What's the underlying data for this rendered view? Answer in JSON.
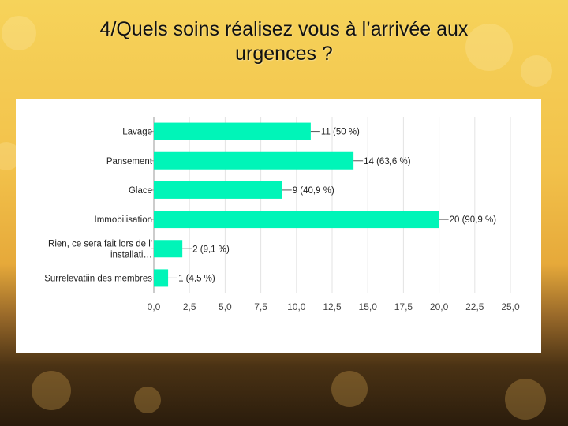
{
  "slide": {
    "title_line1": "4/Quels soins réalisez vous à l’arrivée aux",
    "title_line2": "urgences ?"
  },
  "colors": {
    "bar": "#00f5b8",
    "grid": "#e3e3e3",
    "arrow": "#4aa3d8"
  },
  "chart_data": {
    "type": "bar",
    "orientation": "horizontal",
    "categories": [
      [
        "Lavage"
      ],
      [
        "Pansement"
      ],
      [
        "Glace"
      ],
      [
        "Immobilisation"
      ],
      [
        "Rien, ce sera fait lors de l'",
        "installati…"
      ],
      [
        "Surrelevatiin des membres"
      ]
    ],
    "values": [
      11,
      14,
      9,
      20,
      2,
      1
    ],
    "data_labels": [
      "11 (50 %)",
      "14 (63,6 %)",
      "9 (40,9 %)",
      "20 (90,9 %)",
      "2 (9,1 %)",
      "1 (4,5 %)"
    ],
    "xlim": [
      0,
      25
    ],
    "x_ticks": [
      "0,0",
      "2,5",
      "5,0",
      "7,5",
      "10,0",
      "12,5",
      "15,0",
      "17,5",
      "20,0",
      "22,5",
      "25,0"
    ],
    "grid": true,
    "highlighted_categories": [
      "Pansement",
      "Immobilisation"
    ]
  }
}
